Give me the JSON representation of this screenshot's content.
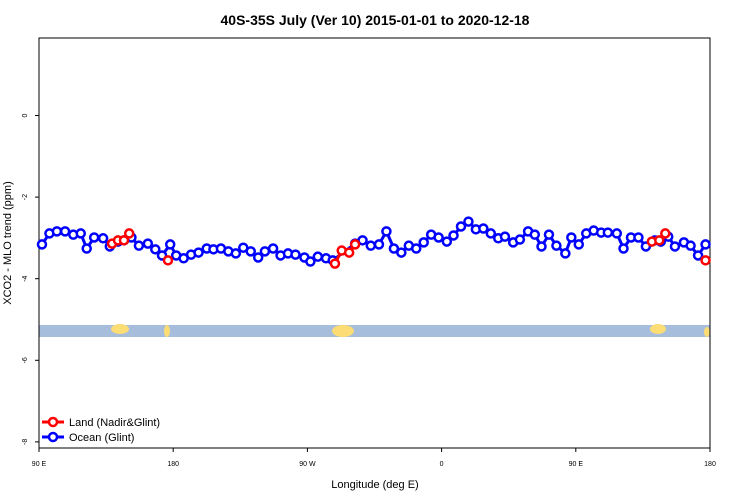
{
  "chart_data": {
    "type": "line",
    "title": "40S-35S July (Ver 10)   2015-01-01 to 2020-12-18",
    "x_label": "Longitude (deg E)",
    "y_label": "XCO2 - MLO trend (ppm)",
    "xlim": [
      90,
      540
    ],
    "ylim": [
      -8.15,
      1.9
    ],
    "xticks": [
      {
        "value": 90,
        "label": "90 E"
      },
      {
        "value": 180,
        "label": "180"
      },
      {
        "value": 270,
        "label": "90 W"
      },
      {
        "value": 360,
        "label": "0"
      },
      {
        "value": 450,
        "label": "90 E"
      },
      {
        "value": 540,
        "label": "180"
      }
    ],
    "yticks": [
      -8,
      -6,
      -4,
      -2,
      0
    ],
    "legend": "lower left",
    "series": [
      {
        "name": "Ocean (Glint)",
        "color": "#0000ff",
        "x": [
          92,
          97,
          102,
          107.5,
          113,
          118,
          122,
          127,
          133,
          137.5,
          143,
          147,
          152,
          157,
          163,
          168,
          172.5,
          178,
          182,
          187,
          192,
          197,
          202.5,
          207,
          212,
          217,
          222,
          227,
          232,
          237,
          241.5,
          247,
          252,
          257,
          262,
          268,
          272,
          277,
          282.5,
          287,
          302,
          307,
          312.5,
          318,
          323,
          328,
          333,
          338,
          343,
          348,
          353,
          358,
          363.5,
          368,
          373,
          378,
          383,
          388,
          393,
          398,
          402.5,
          408,
          412.5,
          418,
          422.5,
          427,
          432,
          437,
          443,
          447,
          452,
          457,
          462,
          467,
          471.5,
          477.5,
          482,
          487,
          492,
          497,
          503,
          507,
          512,
          516.5,
          522.5,
          527,
          532,
          537
        ],
        "values": [
          -3.16,
          -2.89,
          -2.84,
          -2.84,
          -2.92,
          -2.89,
          -3.26,
          -2.99,
          -3.01,
          -3.21,
          -3.09,
          -3.06,
          -2.99,
          -3.19,
          -3.14,
          -3.28,
          -3.43,
          -3.16,
          -3.43,
          -3.5,
          -3.41,
          -3.36,
          -3.26,
          -3.28,
          -3.26,
          -3.33,
          -3.38,
          -3.24,
          -3.33,
          -3.48,
          -3.33,
          -3.26,
          -3.43,
          -3.38,
          -3.41,
          -3.48,
          -3.58,
          -3.46,
          -3.5,
          -3.55,
          -3.14,
          -3.06,
          -3.19,
          -3.16,
          -2.84,
          -3.26,
          -3.36,
          -3.19,
          -3.26,
          -3.11,
          -2.92,
          -2.99,
          -3.09,
          -2.94,
          -2.72,
          -2.6,
          -2.79,
          -2.77,
          -2.89,
          -3.01,
          -2.97,
          -3.11,
          -3.04,
          -2.84,
          -2.92,
          -3.21,
          -2.92,
          -3.19,
          -3.38,
          -2.99,
          -3.16,
          -2.89,
          -2.82,
          -2.87,
          -2.87,
          -2.89,
          -3.26,
          -2.99,
          -2.99,
          -3.21,
          -3.06,
          -3.09,
          -2.97,
          -3.21,
          -3.11,
          -3.19,
          -3.43,
          -3.16
        ]
      },
      {
        "name": "Land (Nadir&Glint)",
        "color": "#ff0000",
        "x": [
          139,
          143,
          147,
          150.5,
          null,
          176.5,
          null,
          288.5,
          293,
          298,
          302,
          null,
          501,
          506,
          510,
          null,
          537
        ],
        "values": [
          -3.14,
          -3.06,
          -3.06,
          -2.89,
          null,
          -3.55,
          null,
          -3.63,
          -3.31,
          -3.36,
          -3.16,
          null,
          -3.09,
          -3.06,
          -2.89,
          null,
          -3.55
        ]
      }
    ]
  }
}
